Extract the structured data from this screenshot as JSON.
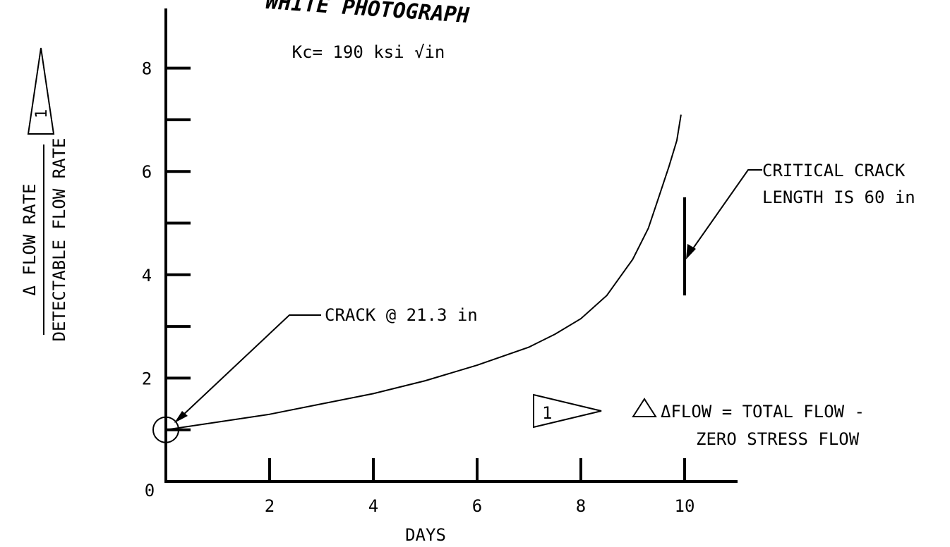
{
  "chart_data": {
    "type": "line",
    "title": "WHITE PHOTOGRAPH",
    "subtitle": "Kc= 190 ksi √in",
    "xlabel": "DAYS",
    "ylabel_numerator": "Δ FLOW RATE",
    "ylabel_denominator": "DETECTABLE FLOW RATE",
    "ylabel_note_marker": "1",
    "xlim": [
      0,
      11
    ],
    "ylim": [
      0,
      9.5
    ],
    "x_ticks": [
      2,
      4,
      6,
      8,
      10
    ],
    "x_tick_labels": [
      "2",
      "4",
      "6",
      "8",
      "10"
    ],
    "y_ticks": [
      1,
      2,
      3,
      4,
      5,
      6,
      7,
      8
    ],
    "y_tick_labels": {
      "2": "2",
      "4": "4",
      "6": "6",
      "8": "8"
    },
    "origin_label": "0",
    "grid": false,
    "legend": "none",
    "series": [
      {
        "x": [
          0,
          1,
          2,
          3,
          4,
          5,
          6,
          7,
          7.5,
          8,
          8.5,
          9,
          9.3,
          9.5,
          9.7,
          9.85,
          9.93
        ],
        "y": [
          1.0,
          1.15,
          1.3,
          1.5,
          1.7,
          1.95,
          2.25,
          2.6,
          2.85,
          3.15,
          3.6,
          4.3,
          4.9,
          5.5,
          6.1,
          6.6,
          7.1
        ]
      }
    ],
    "markers": {
      "start_point": {
        "x": 0,
        "y": 1.0
      },
      "critical_line": {
        "x": 10,
        "y_from": 3.6,
        "y_to": 5.5
      }
    },
    "annotations": {
      "crack_start": "CRACK @ 21.3 in",
      "critical_line1": "CRITICAL CRACK",
      "critical_line2": "LENGTH IS 60 in",
      "note_marker": "1",
      "note_line1": "ΔFLOW = TOTAL FLOW -",
      "note_line2": "ZERO STRESS FLOW"
    }
  }
}
